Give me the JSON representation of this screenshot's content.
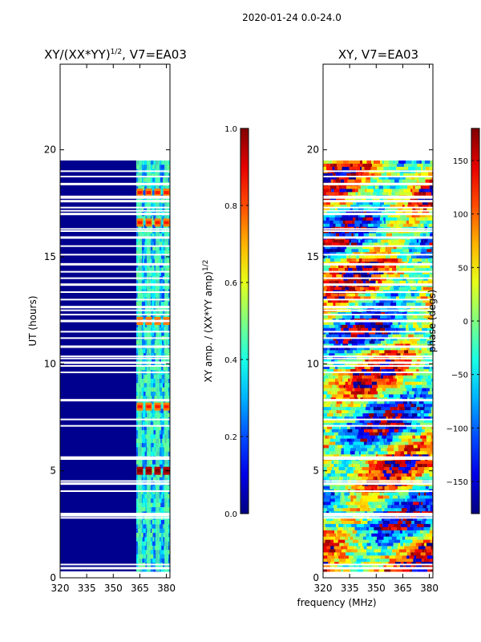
{
  "suptitle": "2020-01-24 0.0-24.0",
  "colors": {
    "blank": "#ffffff",
    "low": "#00008f",
    "axes": "#000000"
  },
  "chart_data": [
    {
      "type": "heatmap",
      "name": "amplitude",
      "title": "XY/(XX*YY)",
      "title_sup": "1/2",
      "title_suffix": ", V7=EA03",
      "xlabel": "",
      "ylabel": "UT (hours)",
      "xlim": [
        320,
        382
      ],
      "ylim": [
        0,
        24
      ],
      "xticks": [
        320,
        335,
        350,
        365,
        380
      ],
      "yticks": [
        0,
        5,
        10,
        15,
        20
      ],
      "data_ut_range": [
        0.3,
        19.5
      ],
      "band_mhz": [
        363,
        382
      ],
      "band_columns_mhz": [
        365,
        370,
        375,
        380
      ],
      "hot_hours": [
        5.0,
        16.6,
        18.0,
        8.0,
        12.0
      ],
      "colorbar": {
        "label": "XY amp. / (XX*YY amp)",
        "label_sup": "1/2",
        "range": [
          0.0,
          1.0
        ],
        "ticks": [
          0.0,
          0.2,
          0.4,
          0.6,
          0.8,
          1.0
        ],
        "tick_labels": [
          "0.0",
          "0.2",
          "0.4",
          "0.6",
          "0.8",
          "1.0"
        ]
      }
    },
    {
      "type": "heatmap",
      "name": "phase",
      "title": "XY, V7=EA03",
      "xlabel": "frequency (MHz)",
      "ylabel": "",
      "xlim": [
        320,
        382
      ],
      "ylim": [
        0,
        24
      ],
      "xticks": [
        320,
        335,
        350,
        365,
        380
      ],
      "yticks": [
        0,
        5,
        10,
        15,
        20
      ],
      "data_ut_range": [
        0.3,
        19.5
      ],
      "colorbar": {
        "label": "phase (degs)",
        "range": [
          -180,
          180
        ],
        "ticks": [
          -150,
          -100,
          -50,
          0,
          50,
          100,
          150
        ],
        "tick_labels": [
          "−150",
          "−100",
          "−50",
          "0",
          "50",
          "100",
          "150"
        ]
      }
    }
  ],
  "gap_hours": [
    0.45,
    0.62,
    2.8,
    2.92,
    3.0,
    4.05,
    4.4,
    4.52,
    5.55,
    5.62,
    7.1,
    7.4,
    8.3,
    9.6,
    9.9,
    10.05,
    10.25,
    10.35,
    10.8,
    11.2,
    11.5,
    12.0,
    12.3,
    12.5,
    12.65,
    13.0,
    13.35,
    13.7,
    14.0,
    14.3,
    14.65,
    15.1,
    15.5,
    15.9,
    16.2,
    16.3,
    17.0,
    17.15,
    17.3,
    17.6,
    17.75,
    17.82,
    18.4,
    18.75,
    19.0
  ]
}
